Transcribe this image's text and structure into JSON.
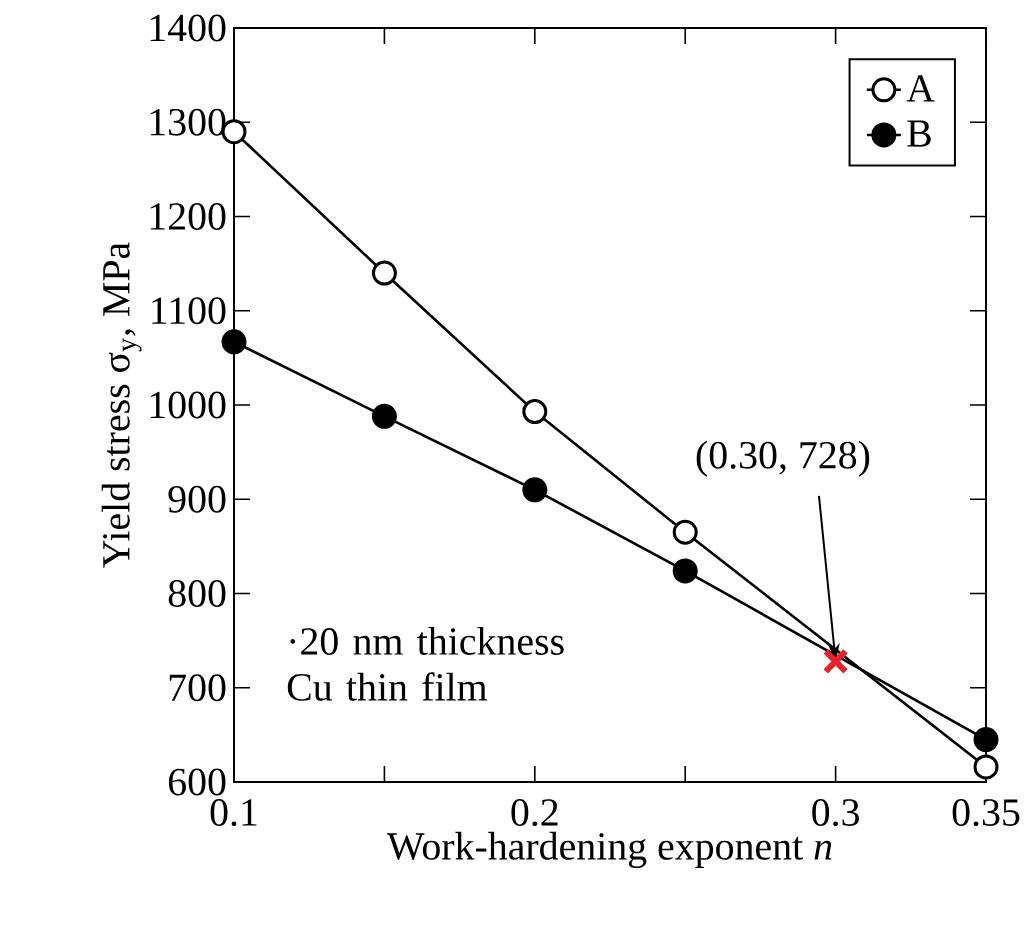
{
  "chart_data": {
    "type": "line",
    "xlabel": "Work-hardening exponent *n*",
    "ylabel": "Yield stress σ$_{y}$, MPa",
    "x": [
      0.1,
      0.15,
      0.2,
      0.25,
      0.35
    ],
    "series": [
      {
        "name": "A",
        "color": "#000000",
        "values": [
          1290,
          1140,
          993,
          865,
          616
        ]
      },
      {
        "name": "B",
        "color": "#000000",
        "values": [
          1067,
          988,
          910,
          824,
          645
        ]
      },
      {
        "type": "scatter",
        "x": [
          0.3
        ],
        "values": [
          728
        ],
        "color": "#e8202a",
        "marker": "cross"
      }
    ],
    "xlim": [
      0.1,
      0.35
    ],
    "ylim": [
      600,
      1400
    ],
    "xticks": [
      0.1,
      {
        "value": 0.15,
        "label": null
      },
      0.2,
      {
        "value": 0.25,
        "label": null
      },
      0.3,
      0.35
    ],
    "yticks": [
      600,
      700,
      800,
      900,
      1000,
      1100,
      1200,
      1300,
      1400
    ],
    "annotations": [
      {
        "text": "(0.30, 728)",
        "x": 0.3,
        "y": 728
      },
      "·20 nm thickness Cu thin film"
    ],
    "legend": "top right",
    "marker": "circle",
    "line_style": "solid",
    "grid": false
  }
}
